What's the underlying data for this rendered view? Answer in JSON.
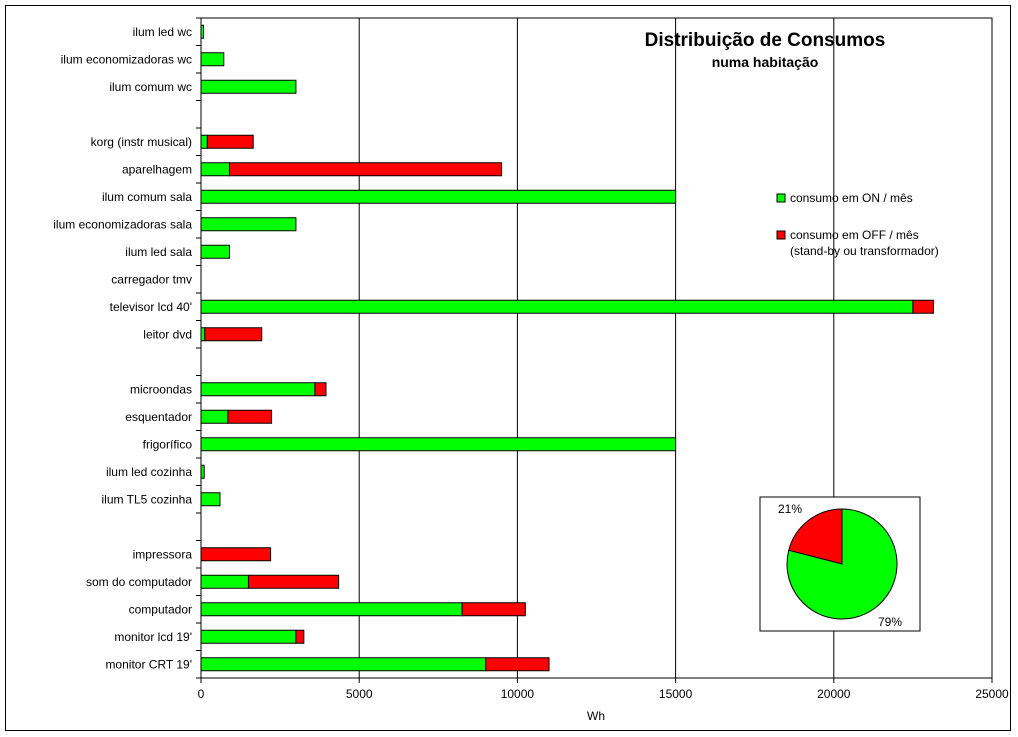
{
  "chart_data": [
    {
      "type": "bar",
      "orientation": "horizontal",
      "stacked": true,
      "title": "Distribuição de Consumos",
      "subtitle": "numa habitação",
      "xlabel": "Wh",
      "ylabel": "",
      "xlim": [
        0,
        25000
      ],
      "x_ticks": [
        "0",
        "5000",
        "10000",
        "15000",
        "20000",
        "25000"
      ],
      "grid": "vertical",
      "legend_position": "right",
      "categories": [
        "ilum led wc",
        "ilum economizadoras wc",
        "ilum comum wc",
        "",
        "korg (instr musical)",
        "aparelhagem",
        "ilum comum sala",
        "ilum economizadoras sala",
        "ilum led sala",
        "carregador tmv",
        "televisor lcd 40'",
        "leitor dvd",
        "",
        "microondas",
        "esquentador",
        "frigorífico",
        "ilum led cozinha",
        "ilum TL5 cozinha",
        "",
        "impressora",
        "som do computador",
        "computador",
        "monitor lcd 19'",
        "monitor CRT 19'"
      ],
      "series": [
        {
          "name": "consumo em ON / mês",
          "color": "#00ff00",
          "values": [
            80,
            720,
            3000,
            0,
            200,
            900,
            15000,
            3000,
            900,
            0,
            22500,
            120,
            0,
            3600,
            850,
            15000,
            100,
            600,
            0,
            0,
            1500,
            8250,
            3000,
            9000
          ]
        },
        {
          "name": "consumo em OFF / mês\n(stand-by ou transformador)",
          "color": "#ff0000",
          "values": [
            0,
            0,
            0,
            0,
            1450,
            8600,
            0,
            0,
            0,
            0,
            650,
            1800,
            0,
            350,
            1380,
            0,
            0,
            0,
            0,
            2200,
            2850,
            2000,
            250,
            2000
          ]
        }
      ]
    },
    {
      "type": "pie",
      "labels": [
        "21%",
        "79%"
      ],
      "values": [
        21,
        79
      ],
      "colors": [
        "#ff0000",
        "#00ff00"
      ]
    }
  ],
  "legend": {
    "items": [
      {
        "label": "consumo em ON / mês",
        "color": "#00ff00"
      },
      {
        "label": "consumo em OFF / mês",
        "label2": "(stand-by ou transformador)",
        "color": "#ff0000"
      }
    ]
  }
}
